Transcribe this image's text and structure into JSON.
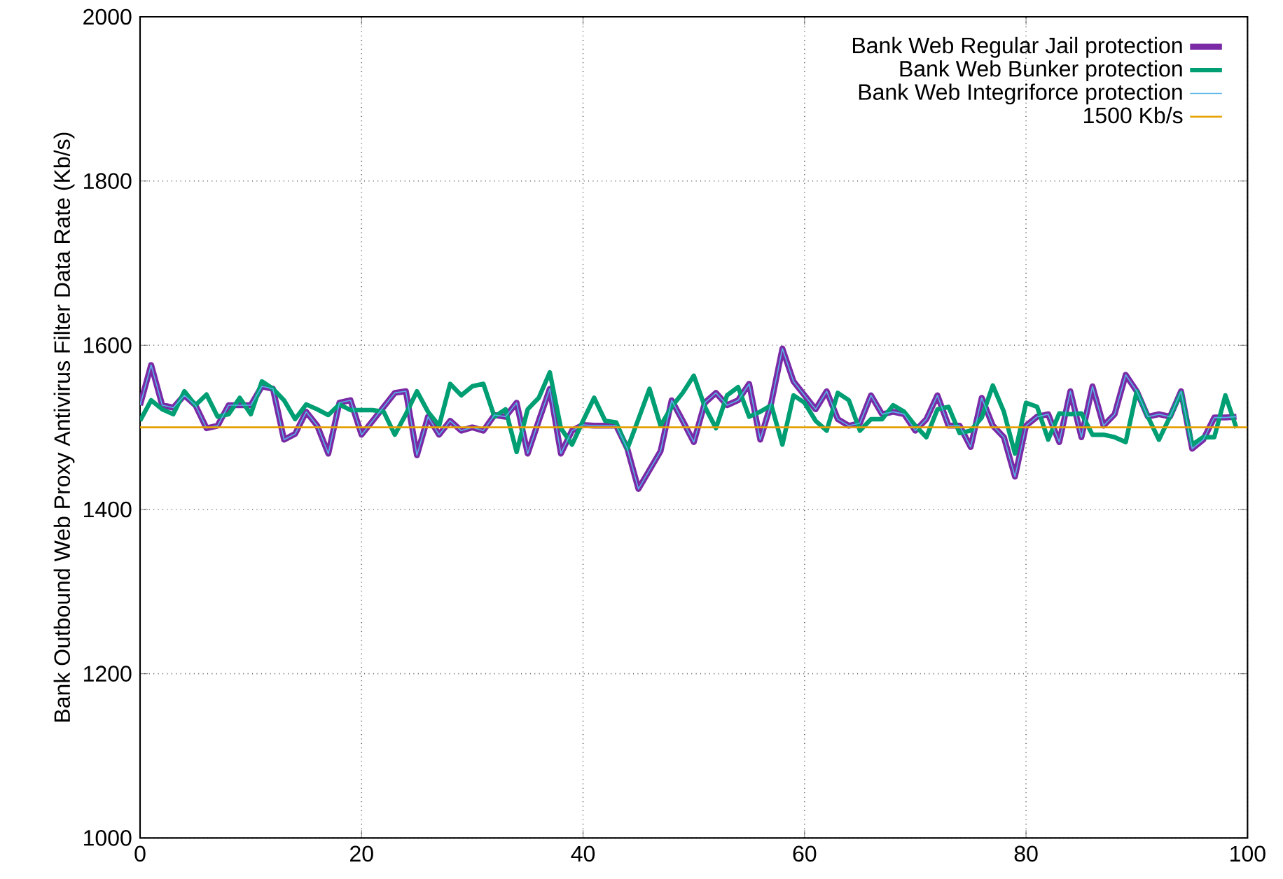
{
  "chart_data": {
    "type": "line",
    "ylabel": "Bank Outbound Web Proxy Antivirus Filter Data Rate (Kb/s)",
    "x": [
      0,
      1,
      2,
      3,
      4,
      5,
      6,
      7,
      8,
      9,
      10,
      11,
      12,
      13,
      14,
      15,
      16,
      17,
      18,
      19,
      20,
      21,
      22,
      23,
      24,
      25,
      26,
      27,
      28,
      29,
      30,
      31,
      32,
      33,
      34,
      35,
      36,
      37,
      38,
      39,
      40,
      41,
      42,
      43,
      44,
      45,
      46,
      47,
      48,
      49,
      50,
      51,
      52,
      53,
      54,
      55,
      56,
      57,
      58,
      59,
      60,
      61,
      62,
      63,
      64,
      65,
      66,
      67,
      68,
      69,
      70,
      71,
      72,
      73,
      74,
      75,
      76,
      77,
      78,
      79,
      80,
      81,
      82,
      83,
      84,
      85,
      86,
      87,
      88,
      89,
      90,
      91,
      92,
      93,
      94,
      95,
      96,
      97,
      98,
      99
    ],
    "series": [
      {
        "name": "Bank Web Regular Jail protection",
        "color": "#7b2aa6",
        "values": [
          1527,
          1576,
          1527,
          1524,
          1539,
          1527,
          1499,
          1502,
          1527,
          1527,
          1527,
          1550,
          1547,
          1485,
          1492,
          1519,
          1502,
          1468,
          1530,
          1533,
          1491,
          1508,
          1525,
          1542,
          1544,
          1466,
          1513,
          1491,
          1508,
          1496,
          1500,
          1496,
          1515,
          1513,
          1530,
          1468,
          1508,
          1547,
          1468,
          1496,
          1503,
          1502,
          1502,
          1502,
          1474,
          1425,
          1448,
          1471,
          1533,
          1508,
          1482,
          1530,
          1542,
          1527,
          1533,
          1553,
          1485,
          1530,
          1596,
          1556,
          1539,
          1522,
          1544,
          1510,
          1502,
          1505,
          1539,
          1516,
          1519,
          1516,
          1496,
          1510,
          1539,
          1502,
          1502,
          1476,
          1536,
          1502,
          1488,
          1440,
          1502,
          1513,
          1516,
          1482,
          1544,
          1488,
          1550,
          1502,
          1516,
          1564,
          1544,
          1513,
          1516,
          1513,
          1544,
          1474,
          1485,
          1512,
          1512,
          1513
        ]
      },
      {
        "name": "Bank Web Bunker protection",
        "color": "#009e73",
        "values": [
          1508,
          1533,
          1522,
          1516,
          1544,
          1527,
          1540,
          1513,
          1516,
          1536,
          1516,
          1556,
          1547,
          1533,
          1510,
          1528,
          1522,
          1515,
          1528,
          1521,
          1521,
          1521,
          1519,
          1491,
          1516,
          1544,
          1519,
          1502,
          1553,
          1539,
          1550,
          1553,
          1513,
          1522,
          1470,
          1522,
          1536,
          1567,
          1499,
          1479,
          1508,
          1536,
          1508,
          1506,
          1474,
          1510,
          1547,
          1502,
          1525,
          1542,
          1563,
          1525,
          1499,
          1539,
          1549,
          1513,
          1519,
          1527,
          1479,
          1539,
          1530,
          1508,
          1496,
          1542,
          1533,
          1496,
          1510,
          1510,
          1527,
          1519,
          1502,
          1488,
          1522,
          1525,
          1493,
          1496,
          1512,
          1551,
          1519,
          1468,
          1530,
          1525,
          1485,
          1517,
          1516,
          1517,
          1491,
          1491,
          1488,
          1482,
          1544,
          1513,
          1485,
          1513,
          1542,
          1479,
          1488,
          1488,
          1539,
          1499
        ]
      },
      {
        "name": "Bank Web Integriforce protection",
        "color": "#56b4e9",
        "values": [
          1527,
          1576,
          1527,
          1524,
          1539,
          1527,
          1499,
          1502,
          1527,
          1527,
          1527,
          1550,
          1547,
          1485,
          1492,
          1519,
          1502,
          1468,
          1530,
          1533,
          1491,
          1508,
          1525,
          1542,
          1544,
          1466,
          1513,
          1491,
          1508,
          1496,
          1500,
          1496,
          1515,
          1513,
          1530,
          1468,
          1508,
          1547,
          1468,
          1496,
          1503,
          1502,
          1502,
          1502,
          1474,
          1425,
          1448,
          1471,
          1533,
          1508,
          1482,
          1530,
          1542,
          1527,
          1533,
          1553,
          1485,
          1530,
          1596,
          1556,
          1539,
          1522,
          1544,
          1510,
          1502,
          1505,
          1539,
          1516,
          1519,
          1516,
          1496,
          1510,
          1539,
          1502,
          1502,
          1476,
          1536,
          1502,
          1488,
          1440,
          1502,
          1513,
          1516,
          1482,
          1544,
          1488,
          1550,
          1502,
          1516,
          1564,
          1544,
          1513,
          1516,
          1513,
          1544,
          1474,
          1485,
          1512,
          1512,
          1513
        ]
      }
    ],
    "ref_lines": [
      {
        "axis": "y",
        "value": 1500,
        "label": "1500 Kb/s",
        "color": "#e69f00"
      }
    ],
    "xlim": [
      0,
      100
    ],
    "ylim": [
      1000,
      2000
    ],
    "xticks": [
      0,
      20,
      40,
      60,
      80,
      100
    ],
    "yticks": [
      1000,
      1200,
      1400,
      1600,
      1800,
      2000
    ],
    "grid": true,
    "legend": "top right"
  }
}
